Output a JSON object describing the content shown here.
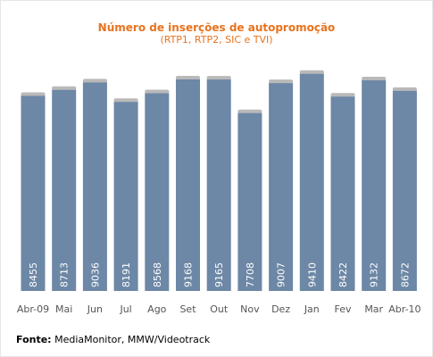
{
  "chart_data": {
    "type": "bar",
    "title": "Número de inserções de autopromoção",
    "subtitle": "(RTP1, RTP2, SIC e TVI)",
    "categories": [
      "Abr-09",
      "Mai",
      "Jun",
      "Jul",
      "Ago",
      "Set",
      "Out",
      "Nov",
      "Dez",
      "Jan",
      "Fev",
      "Mar",
      "Abr-10"
    ],
    "values": [
      8455,
      8713,
      9036,
      8191,
      8568,
      9168,
      9165,
      7708,
      9007,
      9410,
      8422,
      9132,
      8672
    ],
    "xlabel": "",
    "ylabel": "",
    "ylim": [
      0,
      10000
    ],
    "grid": false,
    "legend": "none",
    "bar_color": "#6d87a6",
    "bar_cap_color": "#b9b9b9",
    "label_color": "#ffffff",
    "tick_color": "#555555"
  },
  "source": {
    "label": "Fonte:",
    "text": "MediaMonitor, MMW/Videotrack"
  },
  "colors": {
    "title": "#e8731d"
  }
}
